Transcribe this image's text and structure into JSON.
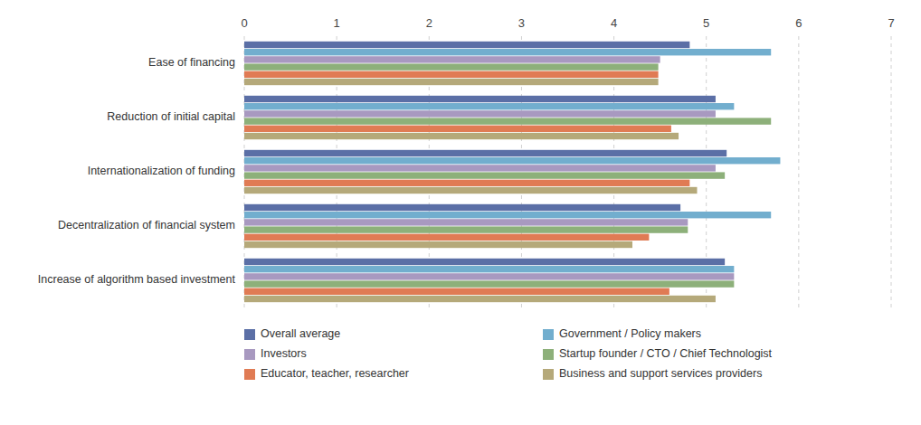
{
  "chart_data": {
    "type": "bar",
    "orientation": "horizontal",
    "categories": [
      "Ease of financing",
      "Reduction of initial capital",
      "Internationalization of funding",
      "Decentralization of financial system",
      "Increase of algorithm based investment"
    ],
    "series": [
      {
        "name": "Overall average",
        "color": "#5b6fa6",
        "values": [
          4.82,
          5.1,
          5.22,
          4.72,
          5.2
        ]
      },
      {
        "name": "Government / Policy makers",
        "color": "#72aece",
        "values": [
          5.7,
          5.3,
          5.8,
          5.7,
          5.3
        ]
      },
      {
        "name": "Investors",
        "color": "#a899c0",
        "values": [
          4.5,
          5.1,
          5.1,
          4.8,
          5.3
        ]
      },
      {
        "name": "Startup founder / CTO / Chief Technologist",
        "color": "#8db07a",
        "values": [
          4.48,
          5.7,
          5.2,
          4.8,
          5.3
        ]
      },
      {
        "name": "Educator, teacher, researcher",
        "color": "#e07b54",
        "values": [
          4.48,
          4.62,
          4.82,
          4.38,
          4.6
        ]
      },
      {
        "name": "Business and support services providers",
        "color": "#b5a97a",
        "values": [
          4.48,
          4.7,
          4.9,
          4.2,
          5.1
        ]
      }
    ],
    "xlim": [
      0,
      7
    ],
    "xticks": [
      0,
      1,
      2,
      3,
      4,
      5,
      6,
      7
    ],
    "grid": true,
    "legend": "bottom"
  }
}
